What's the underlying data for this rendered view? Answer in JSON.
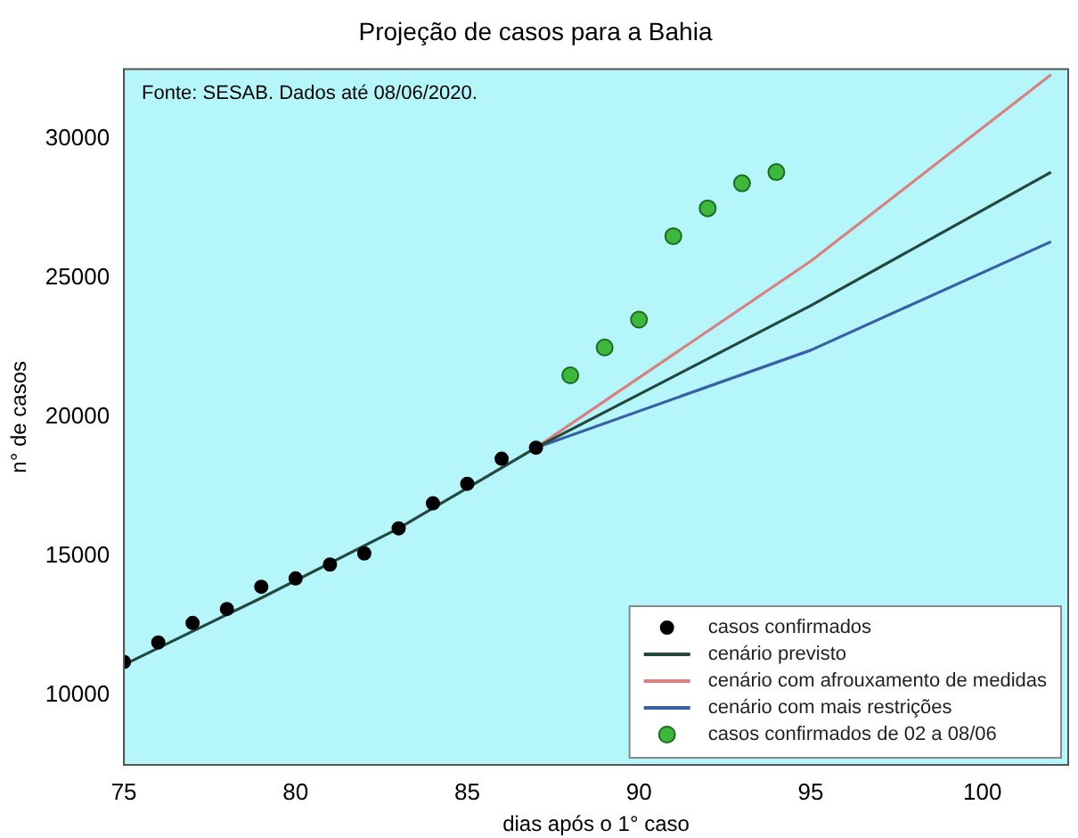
{
  "chart_data": {
    "type": "scatter",
    "title": "Projeção de casos para a Bahia",
    "xlabel": "dias após o 1° caso",
    "ylabel": "n° de casos",
    "annotations": [
      "Fonte: SESAB. Dados até 08/06/2020."
    ],
    "series": [
      {
        "name": "casos confirmados",
        "type": "scatter",
        "color": "#000000",
        "x": [
          75,
          76,
          77,
          78,
          79,
          80,
          81,
          82,
          83,
          84,
          85,
          86,
          87
        ],
        "values": [
          11200,
          11900,
          12600,
          13100,
          13900,
          14200,
          14700,
          15100,
          16000,
          16900,
          17600,
          18500,
          18900
        ]
      },
      {
        "name": "cenário previsto",
        "type": "line",
        "color": "#24483c",
        "x": [
          75,
          79,
          83,
          87,
          95,
          102
        ],
        "values": [
          11100,
          13500,
          16000,
          18900,
          24000,
          28800
        ]
      },
      {
        "name": "cenário com afrouxamento de medidas",
        "type": "line",
        "color": "#d98080",
        "x": [
          87,
          95,
          102
        ],
        "values": [
          18900,
          25600,
          32300
        ]
      },
      {
        "name": "cenário com mais restrições",
        "type": "line",
        "color": "#3a5fa8",
        "x": [
          87,
          95,
          102
        ],
        "values": [
          18900,
          22400,
          26300
        ]
      },
      {
        "name": "casos confirmados de 02 a 08/06",
        "type": "scatter",
        "color": "#3cb83c",
        "x": [
          88,
          89,
          90,
          91,
          92,
          93,
          94
        ],
        "values": [
          21500,
          22500,
          23500,
          26500,
          27500,
          28400,
          28800
        ]
      }
    ],
    "xlim": [
      75,
      102.5
    ],
    "xticks": [
      75,
      80,
      85,
      90,
      95,
      100
    ],
    "ylim": [
      7500,
      32500
    ],
    "yticks": [
      10000,
      15000,
      20000,
      25000,
      30000
    ],
    "grid": false,
    "legend": "bottom right"
  }
}
